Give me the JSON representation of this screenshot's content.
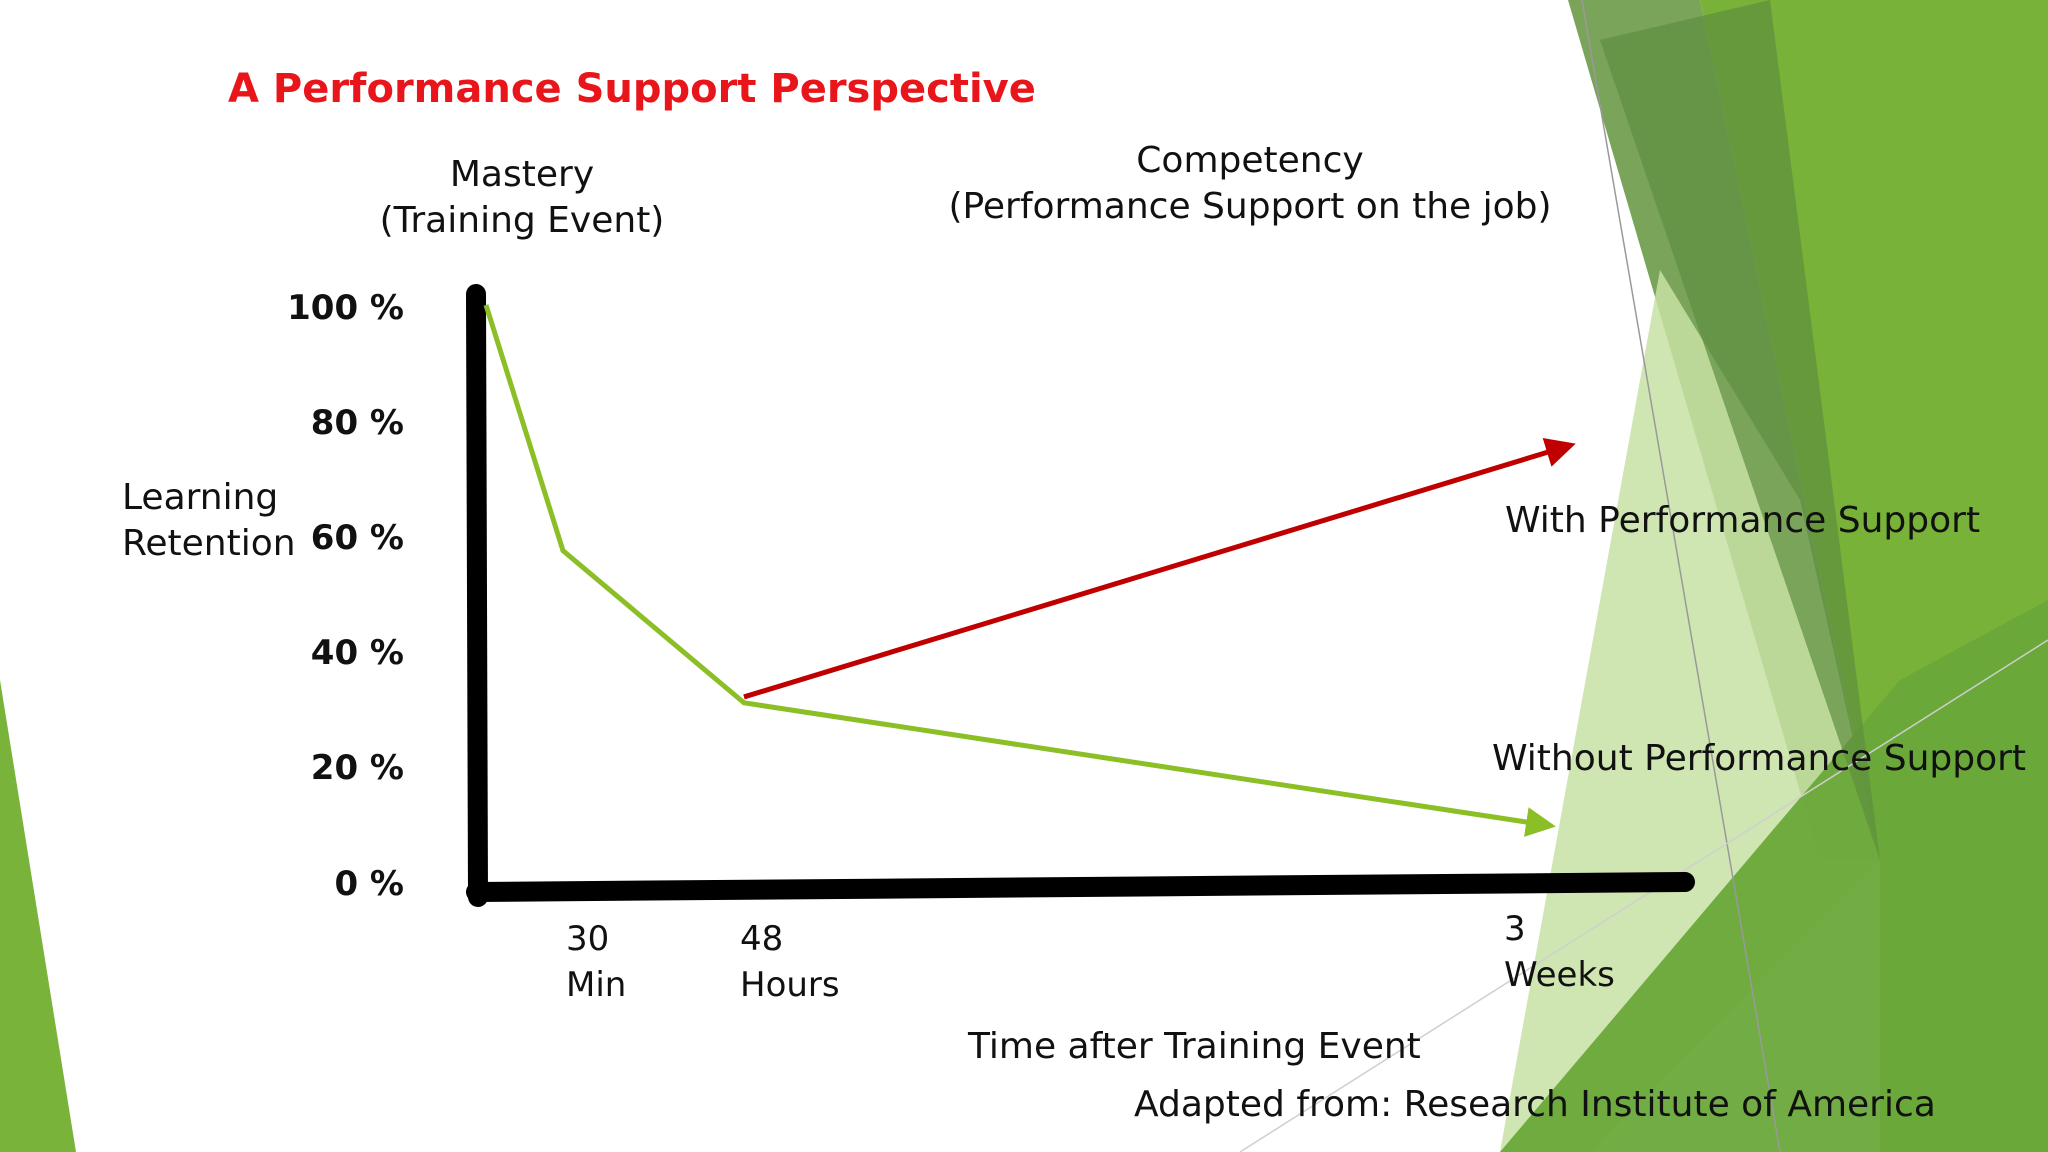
{
  "title": "A Performance Support Perspective",
  "colors": {
    "title": "#e8151b",
    "axis": "#000000",
    "without_series": "#8cbf26",
    "with_series": "#c00000",
    "green_dark": "#5a8f3a",
    "green_mid": "#7ab33a",
    "green_light": "#b8d98a"
  },
  "annotations": {
    "mastery_line1": "Mastery",
    "mastery_line2": "(Training Event)",
    "competency_line1": "Competency",
    "competency_line2": "(Performance Support on the job)",
    "source": "Adapted from: Research Institute of America"
  },
  "chart_data": {
    "type": "line",
    "title": "A Performance Support Perspective",
    "ylabel_line1": "Learning",
    "ylabel_line2": "Retention",
    "xlabel": "Time after Training Event",
    "ylim": [
      0,
      100
    ],
    "y_ticks": [
      "100 %",
      "80 %",
      "60 %",
      "40 %",
      "20 %",
      "0 %"
    ],
    "x_ticks": [
      {
        "line1": "30",
        "line2": "Min"
      },
      {
        "line1": "48",
        "line2": "Hours"
      },
      {
        "line1": "3",
        "line2": "Weeks"
      }
    ],
    "series": [
      {
        "name": "Without Performance Support",
        "points": [
          [
            "0",
            100
          ],
          [
            "30 Min",
            58
          ],
          [
            "48 Hours",
            32
          ],
          [
            "3 Weeks",
            11
          ]
        ]
      },
      {
        "name": "With Performance Support",
        "points": [
          [
            "48 Hours",
            33
          ],
          [
            "3 Weeks",
            76
          ]
        ]
      }
    ],
    "grid": false,
    "legend": "inline labels at line ends"
  }
}
